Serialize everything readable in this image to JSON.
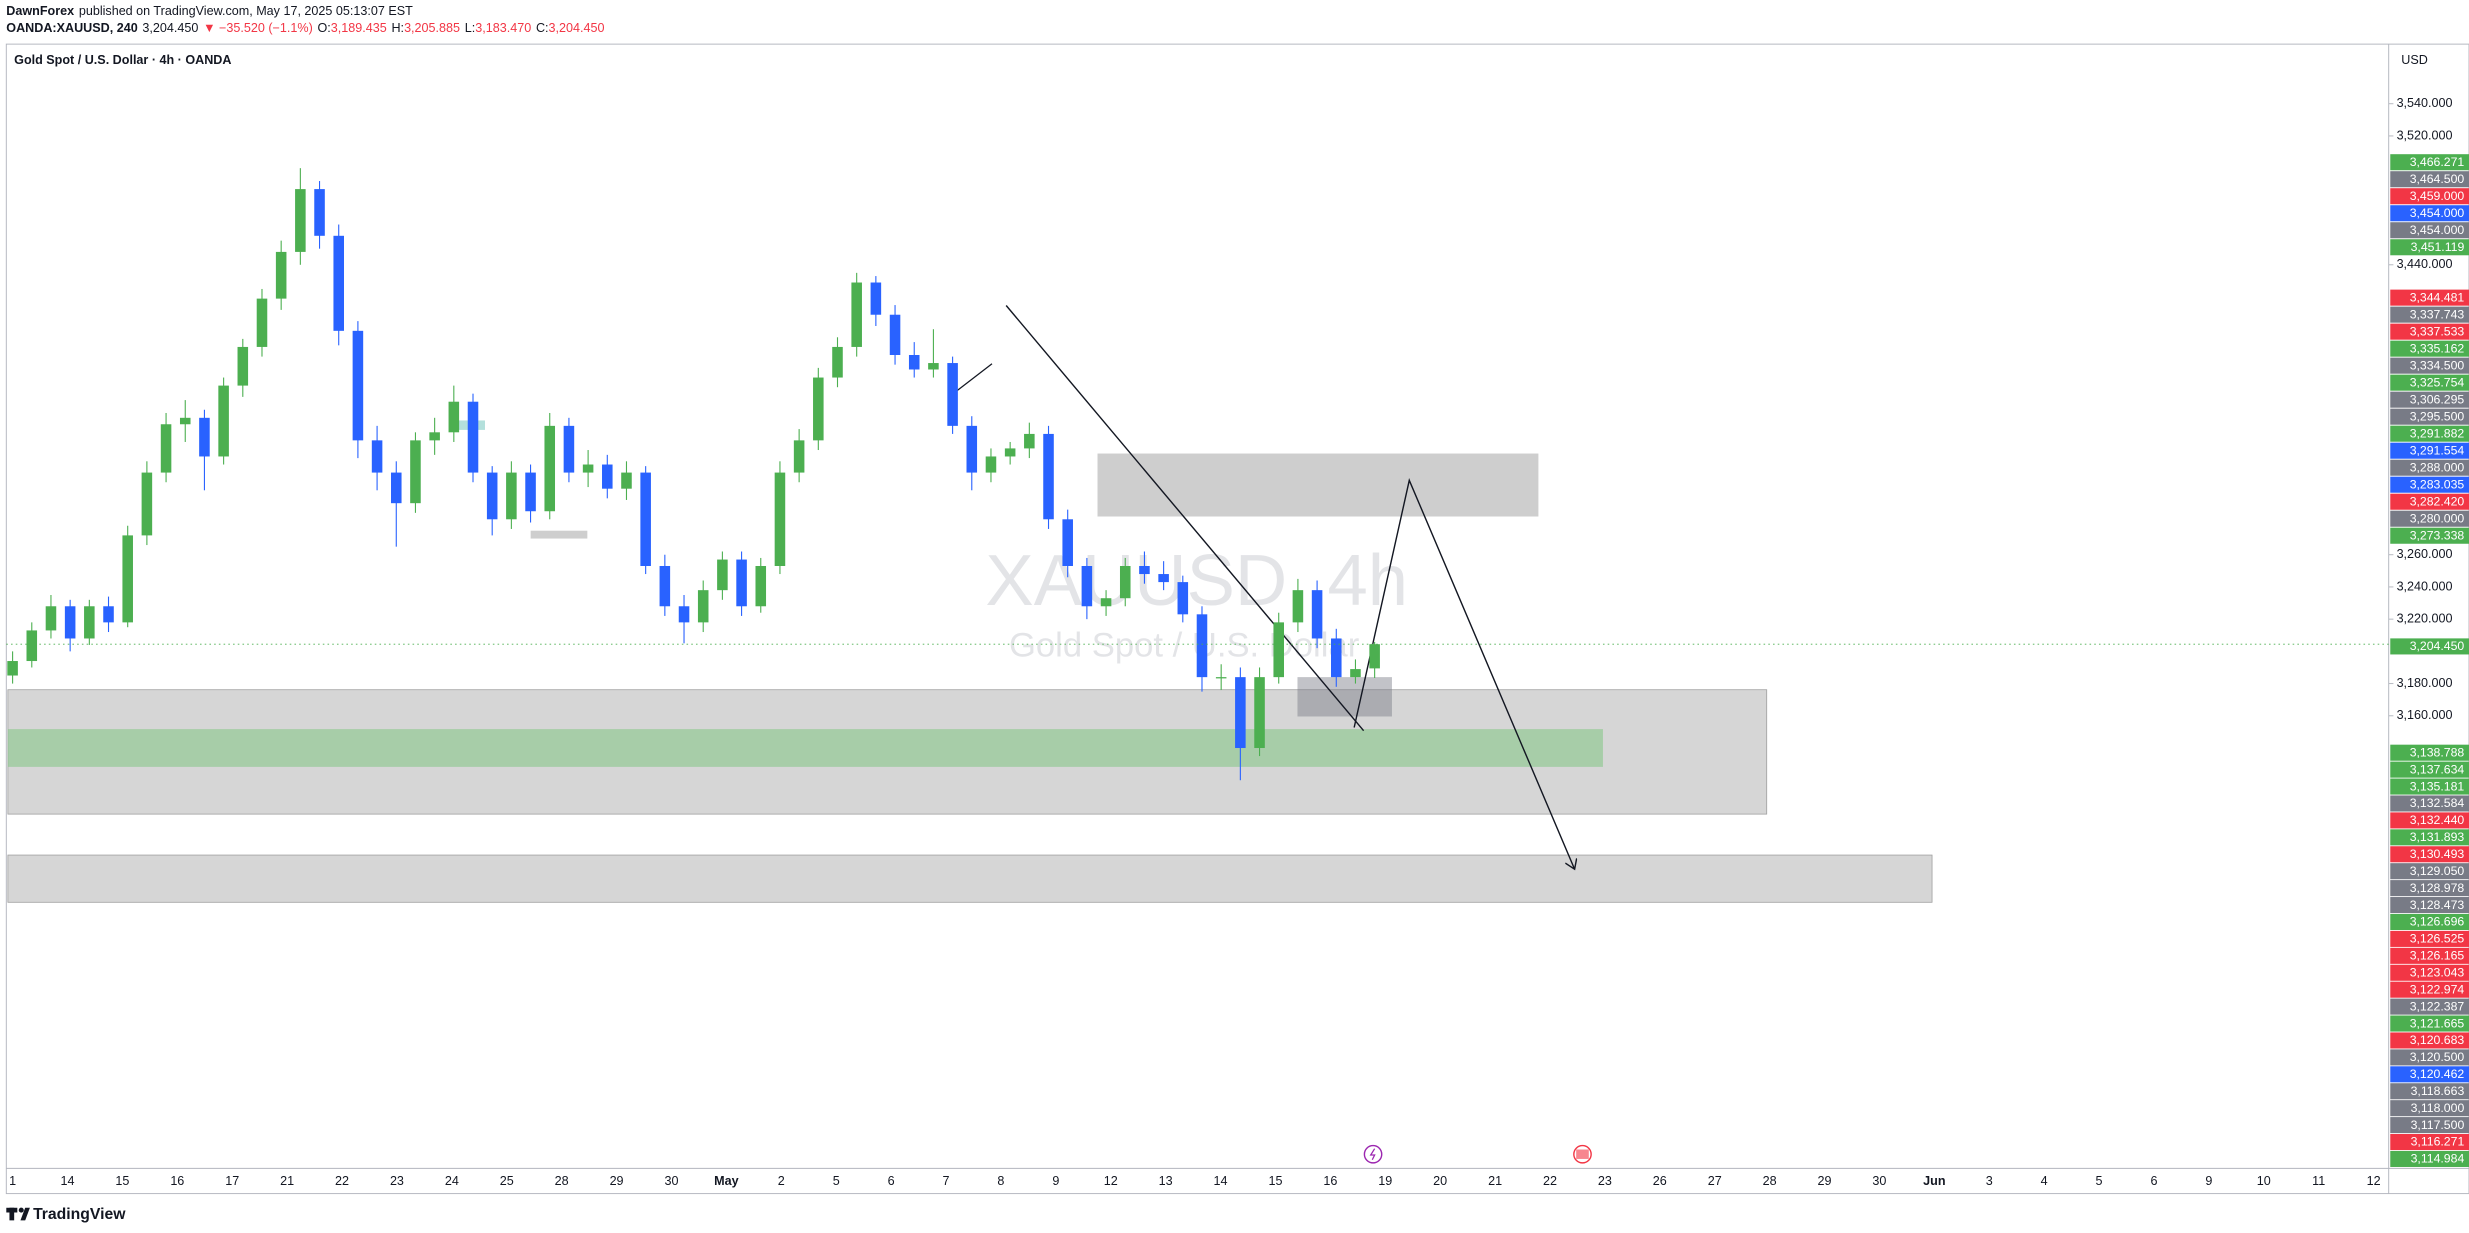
{
  "header": {
    "author": "DawnForex",
    "published": "published on TradingView.com, May 17, 2025 05:13:07 EST"
  },
  "quote": {
    "symbol": "OANDA:XAUUSD, 240",
    "price": "3,204.450",
    "change": "▼ −35.520 (−1.1%)",
    "ohlc": [
      {
        "key": "O:",
        "value": "3,189.435"
      },
      {
        "key": "H:",
        "value": "3,205.885"
      },
      {
        "key": "L:",
        "value": "3,183.470"
      },
      {
        "key": "C:",
        "value": "3,204.450"
      }
    ]
  },
  "chart_data": {
    "type": "candlestick",
    "title": "Gold Spot / U.S. Dollar · 4h · OANDA",
    "watermark": "XAUUSD, 4h",
    "watermark_subtitle": "Gold Spot / U.S. Dollar",
    "currency": "USD",
    "up_color": "#4caf50",
    "down_color": "#2962ff",
    "ylim": [
      2879,
      3577
    ],
    "yticks": [
      {
        "value": 3540,
        "label": "3,540.000"
      },
      {
        "value": 3520,
        "label": "3,520.000"
      },
      {
        "value": 3440,
        "label": "3,440.000"
      },
      {
        "value": 3260,
        "label": "3,260.000"
      },
      {
        "value": 3240,
        "label": "3,240.000"
      },
      {
        "value": 3220,
        "label": "3,220.000"
      },
      {
        "value": 3180,
        "label": "3,180.000"
      },
      {
        "value": 3160,
        "label": "3,160.000"
      }
    ],
    "x_labels": [
      "1",
      "14",
      "15",
      "16",
      "17",
      "21",
      "22",
      "23",
      "24",
      "25",
      "28",
      "29",
      "30",
      "May",
      "2",
      "5",
      "6",
      "7",
      "8",
      "9",
      "12",
      "13",
      "14",
      "15",
      "16",
      "19",
      "20",
      "21",
      "22",
      "23",
      "26",
      "27",
      "28",
      "29",
      "30",
      "Jun",
      "3",
      "4",
      "5",
      "6",
      "9",
      "10",
      "11",
      "12"
    ],
    "candles": [
      [
        3185,
        3200,
        3180,
        3194
      ],
      [
        3194,
        3218,
        3190,
        3213
      ],
      [
        3213,
        3235,
        3208,
        3228
      ],
      [
        3228,
        3232,
        3200,
        3208
      ],
      [
        3208,
        3232,
        3204,
        3228
      ],
      [
        3228,
        3234,
        3212,
        3218
      ],
      [
        3218,
        3278,
        3215,
        3272
      ],
      [
        3272,
        3318,
        3266,
        3311
      ],
      [
        3311,
        3348,
        3305,
        3341
      ],
      [
        3341,
        3356,
        3330,
        3345
      ],
      [
        3345,
        3350,
        3300,
        3321
      ],
      [
        3321,
        3370,
        3316,
        3365
      ],
      [
        3365,
        3394,
        3358,
        3389
      ],
      [
        3389,
        3425,
        3383,
        3419
      ],
      [
        3419,
        3455,
        3412,
        3448
      ],
      [
        3448,
        3500,
        3440,
        3487
      ],
      [
        3487,
        3492,
        3450,
        3458
      ],
      [
        3458,
        3465,
        3390,
        3399
      ],
      [
        3399,
        3405,
        3320,
        3331
      ],
      [
        3331,
        3340,
        3300,
        3311
      ],
      [
        3311,
        3318,
        3265,
        3292
      ],
      [
        3292,
        3336,
        3286,
        3331
      ],
      [
        3331,
        3345,
        3322,
        3336
      ],
      [
        3336,
        3365,
        3330,
        3355
      ],
      [
        3355,
        3360,
        3305,
        3311
      ],
      [
        3311,
        3315,
        3272,
        3282
      ],
      [
        3282,
        3318,
        3276,
        3311
      ],
      [
        3311,
        3316,
        3280,
        3287
      ],
      [
        3287,
        3348,
        3282,
        3340
      ],
      [
        3340,
        3345,
        3305,
        3311
      ],
      [
        3311,
        3325,
        3302,
        3316
      ],
      [
        3316,
        3322,
        3295,
        3301
      ],
      [
        3301,
        3318,
        3294,
        3311
      ],
      [
        3311,
        3315,
        3248,
        3253
      ],
      [
        3253,
        3260,
        3222,
        3228
      ],
      [
        3228,
        3235,
        3205,
        3218
      ],
      [
        3218,
        3244,
        3212,
        3238
      ],
      [
        3238,
        3262,
        3232,
        3257
      ],
      [
        3257,
        3262,
        3222,
        3228
      ],
      [
        3228,
        3258,
        3224,
        3253
      ],
      [
        3253,
        3318,
        3248,
        3311
      ],
      [
        3311,
        3338,
        3305,
        3331
      ],
      [
        3331,
        3376,
        3325,
        3370
      ],
      [
        3370,
        3395,
        3364,
        3389
      ],
      [
        3389,
        3435,
        3383,
        3429
      ],
      [
        3429,
        3433,
        3402,
        3409
      ],
      [
        3409,
        3415,
        3378,
        3384
      ],
      [
        3384,
        3392,
        3370,
        3375
      ],
      [
        3375,
        3400,
        3370,
        3379
      ],
      [
        3379,
        3383,
        3335,
        3340
      ],
      [
        3340,
        3346,
        3300,
        3311
      ],
      [
        3311,
        3326,
        3305,
        3321
      ],
      [
        3321,
        3330,
        3316,
        3326
      ],
      [
        3326,
        3342,
        3320,
        3335
      ],
      [
        3335,
        3340,
        3276,
        3282
      ],
      [
        3282,
        3288,
        3246,
        3253
      ],
      [
        3253,
        3258,
        3220,
        3228
      ],
      [
        3228,
        3238,
        3222,
        3233
      ],
      [
        3233,
        3258,
        3228,
        3253
      ],
      [
        3253,
        3262,
        3242,
        3248
      ],
      [
        3248,
        3256,
        3238,
        3243
      ],
      [
        3243,
        3247,
        3218,
        3223
      ],
      [
        3223,
        3228,
        3175,
        3184
      ],
      [
        3184,
        3192,
        3176,
        3184
      ],
      [
        3184,
        3190,
        3120,
        3140
      ],
      [
        3140,
        3190,
        3135,
        3184
      ],
      [
        3184,
        3224,
        3180,
        3218
      ],
      [
        3218,
        3245,
        3212,
        3238
      ],
      [
        3238,
        3244,
        3202,
        3208
      ],
      [
        3208,
        3214,
        3178,
        3184
      ],
      [
        3184,
        3195,
        3180,
        3189
      ],
      [
        3189.435,
        3205.885,
        3183.47,
        3204.45
      ]
    ],
    "price_labels": [
      {
        "label": "3,466.271",
        "color": "#4caf50"
      },
      {
        "label": "3,464.500",
        "color": "#787b86"
      },
      {
        "label": "3,459.000",
        "color": "#f23645"
      },
      {
        "label": "3,454.000",
        "color": "#2962ff"
      },
      {
        "label": "3,454.000",
        "color": "#787b86"
      },
      {
        "label": "3,451.119",
        "color": "#4caf50"
      },
      {
        "label": "3,344.481",
        "color": "#f23645"
      },
      {
        "label": "3,337.743",
        "color": "#787b86"
      },
      {
        "label": "3,337.533",
        "color": "#f23645"
      },
      {
        "label": "3,335.162",
        "color": "#4caf50"
      },
      {
        "label": "3,334.500",
        "color": "#787b86"
      },
      {
        "label": "3,325.754",
        "color": "#4caf50"
      },
      {
        "label": "3,306.295",
        "color": "#787b86"
      },
      {
        "label": "3,295.500",
        "color": "#787b86"
      },
      {
        "label": "3,291.882",
        "color": "#4caf50"
      },
      {
        "label": "3,291.554",
        "color": "#2962ff"
      },
      {
        "label": "3,288.000",
        "color": "#787b86"
      },
      {
        "label": "3,283.035",
        "color": "#2962ff"
      },
      {
        "label": "3,282.420",
        "color": "#f23645"
      },
      {
        "label": "3,280.000",
        "color": "#787b86"
      },
      {
        "label": "3,273.338",
        "color": "#4caf50"
      },
      {
        "label": "3,204.450",
        "color": "#4caf50"
      },
      {
        "label": "3,138.788",
        "color": "#4caf50"
      },
      {
        "label": "3,137.634",
        "color": "#4caf50"
      },
      {
        "label": "3,135.181",
        "color": "#4caf50"
      },
      {
        "label": "3,132.584",
        "color": "#787b86"
      },
      {
        "label": "3,132.440",
        "color": "#f23645"
      },
      {
        "label": "3,131.893",
        "color": "#4caf50"
      },
      {
        "label": "3,130.493",
        "color": "#f23645"
      },
      {
        "label": "3,129.050",
        "color": "#787b86"
      },
      {
        "label": "3,128.978",
        "color": "#787b86"
      },
      {
        "label": "3,128.473",
        "color": "#787b86"
      },
      {
        "label": "3,126.696",
        "color": "#4caf50"
      },
      {
        "label": "3,126.525",
        "color": "#f23645"
      },
      {
        "label": "3,126.165",
        "color": "#f23645"
      },
      {
        "label": "3,123.043",
        "color": "#f23645"
      },
      {
        "label": "3,122.974",
        "color": "#f23645"
      },
      {
        "label": "3,122.387",
        "color": "#787b86"
      },
      {
        "label": "3,121.665",
        "color": "#4caf50"
      },
      {
        "label": "3,120.683",
        "color": "#f23645"
      },
      {
        "label": "3,120.500",
        "color": "#787b86"
      },
      {
        "label": "3,120.462",
        "color": "#2962ff"
      },
      {
        "label": "3,118.663",
        "color": "#787b86"
      },
      {
        "label": "3,118.000",
        "color": "#787b86"
      },
      {
        "label": "3,117.500",
        "color": "#787b86"
      },
      {
        "label": "3,116.271",
        "color": "#f23645"
      },
      {
        "label": "3,114.984",
        "color": "#4caf50"
      }
    ]
  },
  "footer": {
    "brand": "TradingView"
  }
}
